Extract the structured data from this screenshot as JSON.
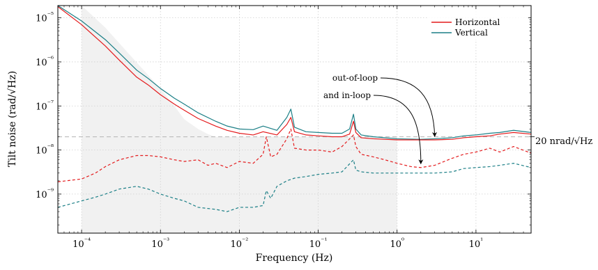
{
  "chart_data": {
    "type": "line",
    "xlabel": "Frequency (Hz)",
    "ylabel": "Tilt noise (rad/√Hz)",
    "xscale": "log",
    "yscale": "log",
    "xlim": [
      5e-05,
      50
    ],
    "ylim": [
      1.3e-10,
      1.9e-05
    ],
    "grid": true,
    "legend_position": "top-right",
    "x_ticks": [
      {
        "value": 0.0001,
        "label": "10⁻⁴"
      },
      {
        "value": 0.001,
        "label": "10⁻³"
      },
      {
        "value": 0.01,
        "label": "10⁻²"
      },
      {
        "value": 0.1,
        "label": "10⁻¹"
      },
      {
        "value": 1,
        "label": "10⁰"
      },
      {
        "value": 10,
        "label": "10¹"
      }
    ],
    "y_ticks": [
      {
        "value": 1e-09,
        "label": "10⁻⁹"
      },
      {
        "value": 1e-08,
        "label": "10⁻⁸"
      },
      {
        "value": 1e-07,
        "label": "10⁻⁷"
      },
      {
        "value": 1e-06,
        "label": "10⁻⁶"
      },
      {
        "value": 1e-05,
        "label": "10⁻⁵"
      }
    ],
    "colors": {
      "horizontal": "#e41a1c",
      "vertical": "#1b7f86",
      "reference": "#bbbbbb",
      "shade": "#f1f1f1"
    },
    "series": [
      {
        "name": "Horizontal",
        "loop": "out-of-loop",
        "color": "#e41a1c",
        "dash": "solid",
        "x": [
          5e-05,
          0.0001,
          0.0002,
          0.0003,
          0.0005,
          0.0007,
          0.001,
          0.0015,
          0.002,
          0.003,
          0.005,
          0.007,
          0.01,
          0.015,
          0.02,
          0.03,
          0.04,
          0.045,
          0.05,
          0.07,
          0.1,
          0.15,
          0.2,
          0.25,
          0.28,
          0.3,
          0.35,
          0.5,
          0.7,
          1,
          2,
          3,
          5,
          7,
          10,
          15,
          20,
          30,
          50
        ],
        "y": [
          1.8e-05,
          7e-06,
          2.3e-06,
          1.1e-06,
          4.5e-07,
          3e-07,
          1.8e-07,
          1.1e-07,
          8e-08,
          5.2e-08,
          3.5e-08,
          2.8e-08,
          2.4e-08,
          2.2e-08,
          2.6e-08,
          2.2e-08,
          3.8e-08,
          5.5e-08,
          2.6e-08,
          2.2e-08,
          2.1e-08,
          2e-08,
          2e-08,
          2.3e-08,
          4.5e-08,
          2.5e-08,
          1.9e-08,
          1.8e-08,
          1.75e-08,
          1.7e-08,
          1.7e-08,
          1.7e-08,
          1.75e-08,
          1.9e-08,
          2e-08,
          2.1e-08,
          2.3e-08,
          2.5e-08,
          2.3e-08
        ]
      },
      {
        "name": "Vertical",
        "loop": "out-of-loop",
        "color": "#1b7f86",
        "dash": "solid",
        "x": [
          5e-05,
          0.0001,
          0.0002,
          0.0003,
          0.0005,
          0.0007,
          0.001,
          0.0015,
          0.002,
          0.003,
          0.005,
          0.007,
          0.01,
          0.015,
          0.02,
          0.03,
          0.04,
          0.045,
          0.05,
          0.07,
          0.1,
          0.15,
          0.2,
          0.25,
          0.28,
          0.3,
          0.35,
          0.5,
          0.7,
          1,
          2,
          3,
          5,
          7,
          10,
          15,
          20,
          30,
          50
        ],
        "y": [
          1.9e-05,
          8.5e-06,
          3.2e-06,
          1.6e-06,
          6.5e-07,
          4.2e-07,
          2.5e-07,
          1.5e-07,
          1.1e-07,
          7e-08,
          4.5e-08,
          3.5e-08,
          3e-08,
          2.9e-08,
          3.5e-08,
          2.8e-08,
          5.5e-08,
          8.5e-08,
          3.3e-08,
          2.6e-08,
          2.5e-08,
          2.4e-08,
          2.4e-08,
          3e-08,
          6.5e-08,
          3e-08,
          2.2e-08,
          2e-08,
          1.9e-08,
          1.8e-08,
          1.75e-08,
          1.8e-08,
          1.9e-08,
          2.1e-08,
          2.2e-08,
          2.4e-08,
          2.5e-08,
          2.8e-08,
          2.5e-08
        ]
      },
      {
        "name": "Horizontal",
        "loop": "in-loop",
        "color": "#e41a1c",
        "dash": "dashed",
        "x": [
          5e-05,
          0.0001,
          0.00015,
          0.0002,
          0.0003,
          0.0005,
          0.0007,
          0.001,
          0.0015,
          0.002,
          0.003,
          0.004,
          0.005,
          0.007,
          0.01,
          0.015,
          0.02,
          0.022,
          0.025,
          0.03,
          0.04,
          0.045,
          0.05,
          0.07,
          0.1,
          0.15,
          0.2,
          0.28,
          0.3,
          0.35,
          0.5,
          0.7,
          1,
          1.5,
          2,
          3,
          5,
          7,
          10,
          15,
          20,
          30,
          50
        ],
        "y": [
          1.9e-09,
          2.2e-09,
          3e-09,
          4.2e-09,
          6e-09,
          7.5e-09,
          7.5e-09,
          7e-09,
          6e-09,
          5.5e-09,
          6e-09,
          4.5e-09,
          5e-09,
          4e-09,
          5.5e-09,
          5e-09,
          8e-09,
          2e-08,
          7e-09,
          8e-09,
          1.8e-08,
          3e-08,
          1.1e-08,
          1e-08,
          1e-08,
          9e-09,
          1.2e-08,
          2.2e-08,
          1.2e-08,
          8e-09,
          7e-09,
          6e-09,
          5e-09,
          4.2e-09,
          4e-09,
          4.5e-09,
          6.5e-09,
          8e-09,
          9e-09,
          1.1e-08,
          9e-09,
          1.2e-08,
          8.5e-09
        ]
      },
      {
        "name": "Vertical",
        "loop": "in-loop",
        "color": "#1b7f86",
        "dash": "dashed",
        "x": [
          5e-05,
          0.0001,
          0.00015,
          0.0002,
          0.0003,
          0.0005,
          0.0007,
          0.001,
          0.0015,
          0.002,
          0.003,
          0.005,
          0.007,
          0.01,
          0.015,
          0.02,
          0.022,
          0.025,
          0.03,
          0.04,
          0.05,
          0.07,
          0.1,
          0.15,
          0.2,
          0.28,
          0.3,
          0.35,
          0.5,
          0.7,
          1,
          1.5,
          2,
          3,
          5,
          7,
          10,
          15,
          20,
          30,
          50
        ],
        "y": [
          5e-10,
          7e-10,
          8.5e-10,
          1e-09,
          1.3e-09,
          1.5e-09,
          1.3e-09,
          1e-09,
          8e-10,
          7e-10,
          5e-10,
          4.5e-10,
          4e-10,
          5e-10,
          5e-10,
          5.5e-10,
          1.2e-09,
          8e-10,
          1.5e-09,
          2e-09,
          2.3e-09,
          2.5e-09,
          2.8e-09,
          3e-09,
          3.2e-09,
          6e-09,
          3.5e-09,
          3.2e-09,
          3e-09,
          3e-09,
          3e-09,
          3e-09,
          3e-09,
          3e-09,
          3.2e-09,
          3.8e-09,
          4e-09,
          4.2e-09,
          4.5e-09,
          5e-09,
          4e-09
        ]
      }
    ],
    "reference_line": {
      "value": 2e-08,
      "label": "20 nrad/√Hz"
    },
    "shaded_region": {
      "x": [
        0.0001,
        0.0001,
        0.0002,
        0.0004,
        0.0007,
        0.001,
        0.0015,
        0.002,
        0.003,
        0.004,
        0.005,
        1,
        1
      ],
      "y": [
        1.3e-10,
        1.9e-05,
        6e-06,
        1.5e-06,
        5e-07,
        2.5e-07,
        1e-07,
        5e-08,
        3e-08,
        2.3e-08,
        2e-08,
        2e-08,
        1.3e-10
      ]
    },
    "annotations": [
      {
        "text": "out-of-loop",
        "target": [
          3,
          1.75e-08
        ]
      },
      {
        "text": "and in-loop",
        "target": [
          2,
          4.2e-09
        ]
      }
    ]
  }
}
